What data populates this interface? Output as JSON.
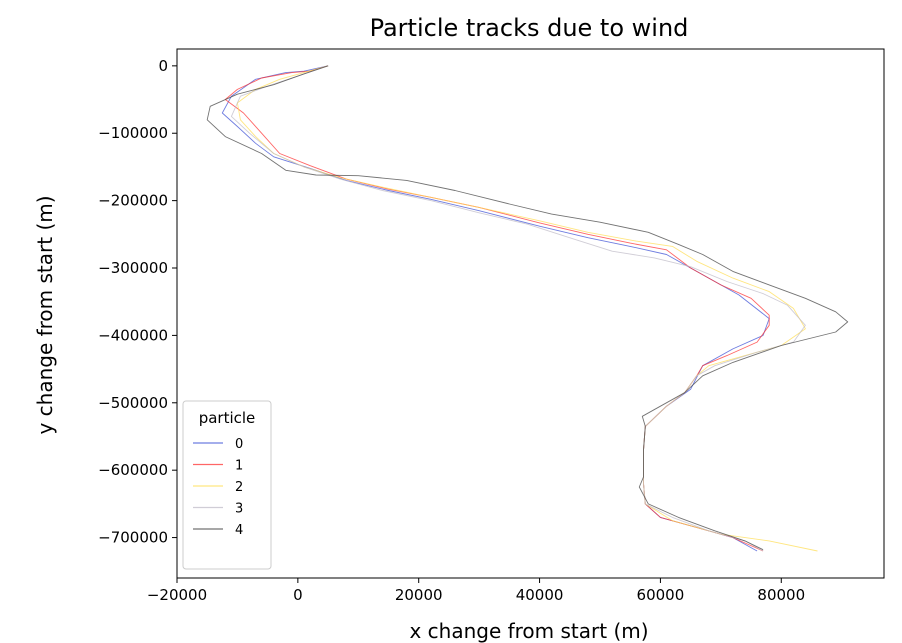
{
  "chart_data": {
    "type": "line",
    "title": "Particle tracks due to wind",
    "xlabel": "x change from start (m)",
    "ylabel": "y change from start (m)",
    "xlim": [
      -20000,
      97000
    ],
    "ylim": [
      -760000,
      25000
    ],
    "xticks": [
      -20000,
      0,
      20000,
      40000,
      60000,
      80000
    ],
    "xtick_labels": [
      "−20000",
      "0",
      "20000",
      "40000",
      "60000",
      "80000"
    ],
    "yticks": [
      0,
      -100000,
      -200000,
      -300000,
      -400000,
      -500000,
      -600000,
      -700000
    ],
    "ytick_labels": [
      "0",
      "−100000",
      "−200000",
      "−300000",
      "−400000",
      "−500000",
      "−600000",
      "−700000"
    ],
    "grid": false,
    "legend": {
      "title": "particle",
      "placement": "lower-left"
    },
    "series": [
      {
        "name": "0",
        "color": "#3f51d6",
        "points": [
          [
            5000,
            0
          ],
          [
            1000,
            -8000
          ],
          [
            -2000,
            -10000
          ],
          [
            -7000,
            -20000
          ],
          [
            -11000,
            -45000
          ],
          [
            -12500,
            -70000
          ],
          [
            -10000,
            -90000
          ],
          [
            -7000,
            -115000
          ],
          [
            -4000,
            -135000
          ],
          [
            2000,
            -152000
          ],
          [
            8000,
            -170000
          ],
          [
            15000,
            -185000
          ],
          [
            22000,
            -198000
          ],
          [
            30000,
            -215000
          ],
          [
            40000,
            -238000
          ],
          [
            48000,
            -255000
          ],
          [
            55000,
            -268000
          ],
          [
            61000,
            -280000
          ],
          [
            66000,
            -305000
          ],
          [
            73000,
            -340000
          ],
          [
            78000,
            -375000
          ],
          [
            77000,
            -400000
          ],
          [
            72000,
            -420000
          ],
          [
            67000,
            -445000
          ],
          [
            65000,
            -480000
          ],
          [
            61000,
            -505000
          ],
          [
            57500,
            -535000
          ],
          [
            57200,
            -570000
          ],
          [
            57200,
            -620000
          ],
          [
            57500,
            -650000
          ],
          [
            60000,
            -670000
          ],
          [
            66000,
            -685000
          ],
          [
            72000,
            -700000
          ],
          [
            76000,
            -720000
          ]
        ]
      },
      {
        "name": "1",
        "color": "#ff3333",
        "points": [
          [
            5000,
            0
          ],
          [
            2000,
            -8000
          ],
          [
            -1000,
            -10000
          ],
          [
            -6000,
            -18000
          ],
          [
            -10000,
            -35000
          ],
          [
            -12000,
            -50000
          ],
          [
            -9000,
            -70000
          ],
          [
            -6000,
            -100000
          ],
          [
            -3000,
            -130000
          ],
          [
            2000,
            -148000
          ],
          [
            8000,
            -168000
          ],
          [
            15000,
            -183000
          ],
          [
            22000,
            -195000
          ],
          [
            30000,
            -210000
          ],
          [
            40000,
            -233000
          ],
          [
            48000,
            -250000
          ],
          [
            55000,
            -263000
          ],
          [
            61000,
            -273000
          ],
          [
            65000,
            -300000
          ],
          [
            70000,
            -325000
          ],
          [
            75000,
            -345000
          ],
          [
            78000,
            -370000
          ],
          [
            78000,
            -385000
          ],
          [
            76000,
            -410000
          ],
          [
            71000,
            -430000
          ],
          [
            67000,
            -445000
          ],
          [
            66000,
            -460000
          ],
          [
            64000,
            -485000
          ],
          [
            61000,
            -505000
          ],
          [
            57500,
            -535000
          ],
          [
            57200,
            -570000
          ],
          [
            57200,
            -620000
          ],
          [
            57500,
            -650000
          ],
          [
            60000,
            -670000
          ],
          [
            66000,
            -685000
          ],
          [
            72000,
            -700000
          ],
          [
            77000,
            -720000
          ]
        ]
      },
      {
        "name": "2",
        "color": "#ffdd55",
        "points": [
          [
            5000,
            0
          ],
          [
            1000,
            -10000
          ],
          [
            -3000,
            -20000
          ],
          [
            -7000,
            -35000
          ],
          [
            -10000,
            -55000
          ],
          [
            -9500,
            -80000
          ],
          [
            -7000,
            -105000
          ],
          [
            -4000,
            -130000
          ],
          [
            1000,
            -150000
          ],
          [
            7000,
            -166000
          ],
          [
            15000,
            -182000
          ],
          [
            22000,
            -195000
          ],
          [
            30000,
            -210000
          ],
          [
            40000,
            -230000
          ],
          [
            48000,
            -247000
          ],
          [
            56000,
            -260000
          ],
          [
            62000,
            -268000
          ],
          [
            66000,
            -290000
          ],
          [
            72000,
            -315000
          ],
          [
            78000,
            -335000
          ],
          [
            82000,
            -360000
          ],
          [
            84000,
            -390000
          ],
          [
            80000,
            -415000
          ],
          [
            74000,
            -430000
          ],
          [
            68000,
            -445000
          ],
          [
            66000,
            -460000
          ],
          [
            64000,
            -485000
          ],
          [
            61000,
            -505000
          ],
          [
            57500,
            -535000
          ],
          [
            57200,
            -570000
          ],
          [
            57200,
            -620000
          ],
          [
            57500,
            -650000
          ],
          [
            62000,
            -675000
          ],
          [
            70000,
            -695000
          ],
          [
            78000,
            -705000
          ],
          [
            86000,
            -720000
          ]
        ]
      },
      {
        "name": "3",
        "color": "#c0bcc8",
        "points": [
          [
            5000,
            0
          ],
          [
            0,
            -15000
          ],
          [
            -5000,
            -30000
          ],
          [
            -9500,
            -45000
          ],
          [
            -11000,
            -75000
          ],
          [
            -8000,
            -100000
          ],
          [
            -4000,
            -130000
          ],
          [
            1000,
            -150000
          ],
          [
            7000,
            -168000
          ],
          [
            14000,
            -185000
          ],
          [
            22000,
            -200000
          ],
          [
            30000,
            -218000
          ],
          [
            38000,
            -235000
          ],
          [
            46000,
            -258000
          ],
          [
            52000,
            -275000
          ],
          [
            59000,
            -285000
          ],
          [
            65000,
            -298000
          ],
          [
            71000,
            -320000
          ],
          [
            77000,
            -338000
          ],
          [
            81000,
            -355000
          ],
          [
            84000,
            -385000
          ],
          [
            82000,
            -410000
          ],
          [
            76000,
            -425000
          ],
          [
            69000,
            -445000
          ],
          [
            66000,
            -460000
          ],
          [
            64000,
            -485000
          ],
          [
            61000,
            -505000
          ],
          [
            57500,
            -535000
          ],
          [
            57200,
            -570000
          ],
          [
            57200,
            -620000
          ],
          [
            57500,
            -650000
          ],
          [
            62000,
            -670000
          ],
          [
            68000,
            -690000
          ],
          [
            74000,
            -705000
          ],
          [
            77000,
            -720000
          ]
        ]
      },
      {
        "name": "4",
        "color": "#444444",
        "points": [
          [
            5000,
            0
          ],
          [
            1000,
            -12000
          ],
          [
            -4000,
            -28000
          ],
          [
            -10000,
            -42000
          ],
          [
            -14500,
            -60000
          ],
          [
            -15000,
            -80000
          ],
          [
            -12000,
            -105000
          ],
          [
            -6000,
            -130000
          ],
          [
            -2000,
            -155000
          ],
          [
            3000,
            -162000
          ],
          [
            10000,
            -163000
          ],
          [
            18000,
            -170000
          ],
          [
            26000,
            -185000
          ],
          [
            35000,
            -205000
          ],
          [
            42000,
            -220000
          ],
          [
            50000,
            -232000
          ],
          [
            58000,
            -247000
          ],
          [
            63000,
            -265000
          ],
          [
            67000,
            -280000
          ],
          [
            72000,
            -305000
          ],
          [
            78000,
            -325000
          ],
          [
            84000,
            -345000
          ],
          [
            89000,
            -365000
          ],
          [
            91000,
            -380000
          ],
          [
            89000,
            -395000
          ],
          [
            80000,
            -415000
          ],
          [
            72000,
            -440000
          ],
          [
            67000,
            -460000
          ],
          [
            64000,
            -485000
          ],
          [
            60000,
            -505000
          ],
          [
            57000,
            -520000
          ],
          [
            57500,
            -535000
          ],
          [
            57200,
            -570000
          ],
          [
            57200,
            -610000
          ],
          [
            56500,
            -625000
          ],
          [
            58000,
            -650000
          ],
          [
            63000,
            -670000
          ],
          [
            69000,
            -690000
          ],
          [
            74000,
            -705000
          ],
          [
            77000,
            -718000
          ]
        ]
      }
    ]
  }
}
